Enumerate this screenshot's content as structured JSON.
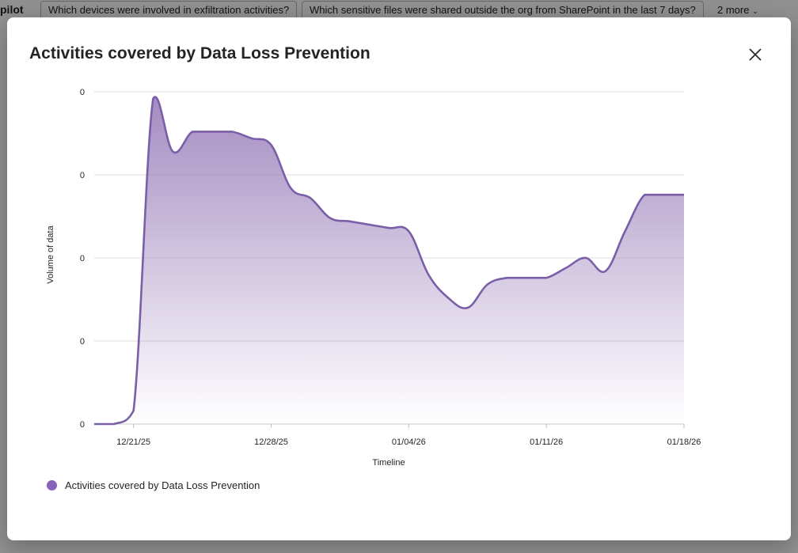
{
  "background": {
    "partial_title": "pilot",
    "suggestions": [
      "Which devices were involved in exfiltration activities?",
      "Which sensitive files were shared outside the org from SharePoint in the last 7 days?"
    ],
    "more_label": "2 more"
  },
  "modal": {
    "title": "Activities covered by Data Loss Prevention",
    "close_icon": "close-icon"
  },
  "colors": {
    "series": "#8764b8",
    "accent": "#7a5fa8"
  },
  "chart_data": {
    "type": "area",
    "xlabel": "Timeline",
    "ylabel": "Volume of data",
    "x_tick_labels": [
      "12/21/25",
      "12/28/25",
      "01/04/26",
      "01/11/26",
      "01/18/26"
    ],
    "y_tick_labels": [
      "0",
      "0",
      "0",
      "0",
      "0"
    ],
    "grid": true,
    "legend_position": "bottom-left",
    "series": [
      {
        "name": "Activities covered by Data Loss Prevention",
        "x": [
          "12/19/25",
          "12/20/25",
          "12/21/25",
          "12/22/25",
          "12/23/25",
          "12/24/25",
          "12/25/25",
          "12/26/25",
          "12/27/25",
          "12/28/25",
          "12/29/25",
          "12/30/25",
          "12/31/25",
          "01/01/26",
          "01/02/26",
          "01/03/26",
          "01/04/26",
          "01/05/26",
          "01/06/26",
          "01/07/26",
          "01/08/26",
          "01/09/26",
          "01/10/26",
          "01/11/26",
          "01/12/26",
          "01/13/26",
          "01/14/26",
          "01/15/26",
          "01/16/26",
          "01/17/26",
          "01/18/26"
        ],
        "values": [
          0,
          0,
          4,
          98,
          82,
          88,
          88,
          88,
          86,
          84,
          71,
          68,
          62,
          61,
          60,
          59,
          58,
          45,
          38,
          35,
          42,
          44,
          44,
          44,
          47,
          50,
          46,
          58,
          69,
          69,
          69
        ]
      }
    ],
    "ylim": [
      0,
      100
    ]
  }
}
